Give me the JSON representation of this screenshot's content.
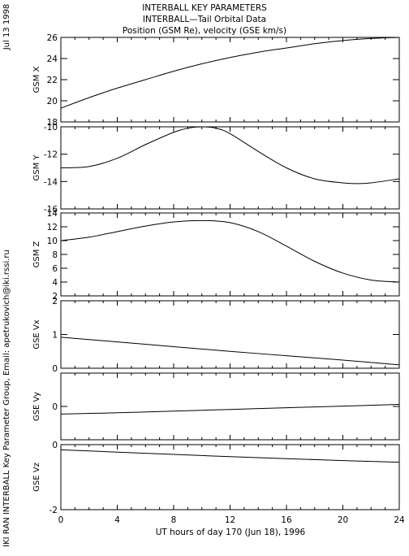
{
  "header": {
    "line1": "INTERBALL KEY PARAMETERS",
    "line2": "INTERBALL—Tail Orbital Data",
    "line3": "Position (GSM Re), velocity (GSE km/s)"
  },
  "side": {
    "date": "Jul 13 1998",
    "credit": "IKI RAN INTERBALL Key Parameter Group, Email: apetrukovich@iki.rssi.ru"
  },
  "chart_data": {
    "type": "line",
    "xlabel": "UT hours of day 170 (Jun 18), 1996",
    "xlim": [
      0,
      24
    ],
    "xticks": [
      0,
      4,
      8,
      12,
      16,
      20,
      24
    ],
    "panels": [
      {
        "ylabel": "GSM X",
        "ylim": [
          18,
          26
        ],
        "yticks": [
          18,
          20,
          22,
          24,
          26
        ],
        "x": [
          0,
          2,
          4,
          6,
          8,
          10,
          12,
          14,
          16,
          18,
          20,
          22,
          24
        ],
        "y": [
          19.3,
          20.3,
          21.2,
          22.0,
          22.8,
          23.5,
          24.1,
          24.6,
          25.0,
          25.4,
          25.7,
          25.9,
          26.0
        ]
      },
      {
        "ylabel": "GSM Y",
        "ylim": [
          -16,
          -10
        ],
        "yticks": [
          -16,
          -14,
          -12,
          -10
        ],
        "x": [
          0,
          2,
          4,
          6,
          8,
          9,
          10,
          11,
          12,
          14,
          16,
          18,
          20,
          21,
          22,
          24
        ],
        "y": [
          -13.0,
          -12.9,
          -12.3,
          -11.3,
          -10.4,
          -10.1,
          -10.0,
          -10.1,
          -10.5,
          -11.8,
          -13.0,
          -13.8,
          -14.1,
          -14.15,
          -14.1,
          -13.8
        ]
      },
      {
        "ylabel": "GSM Z",
        "ylim": [
          2,
          14
        ],
        "yticks": [
          2,
          4,
          6,
          8,
          10,
          12,
          14
        ],
        "x": [
          0,
          2,
          4,
          6,
          8,
          10,
          12,
          14,
          16,
          18,
          20,
          22,
          24
        ],
        "y": [
          10.0,
          10.5,
          11.3,
          12.1,
          12.7,
          12.9,
          12.6,
          11.3,
          9.2,
          7.0,
          5.3,
          4.3,
          4.0
        ]
      },
      {
        "ylabel": "GSE Vx",
        "ylim": [
          0,
          2
        ],
        "yticks": [
          0,
          1,
          2
        ],
        "x": [
          0,
          4,
          8,
          12,
          16,
          20,
          24
        ],
        "y": [
          0.92,
          0.78,
          0.64,
          0.5,
          0.37,
          0.24,
          0.1
        ]
      },
      {
        "ylabel": "GSE Vy",
        "ylim": [
          -1,
          1
        ],
        "yticks": [
          0
        ],
        "x": [
          0,
          4,
          8,
          12,
          16,
          20,
          24
        ],
        "y": [
          -0.23,
          -0.19,
          -0.14,
          -0.09,
          -0.04,
          0.01,
          0.06
        ]
      },
      {
        "ylabel": "GSE Vz",
        "ylim": [
          -2,
          0
        ],
        "yticks": [
          -2,
          0
        ],
        "x": [
          0,
          4,
          8,
          12,
          16,
          20,
          24
        ],
        "y": [
          -0.16,
          -0.23,
          -0.3,
          -0.37,
          -0.43,
          -0.49,
          -0.54
        ]
      }
    ]
  }
}
